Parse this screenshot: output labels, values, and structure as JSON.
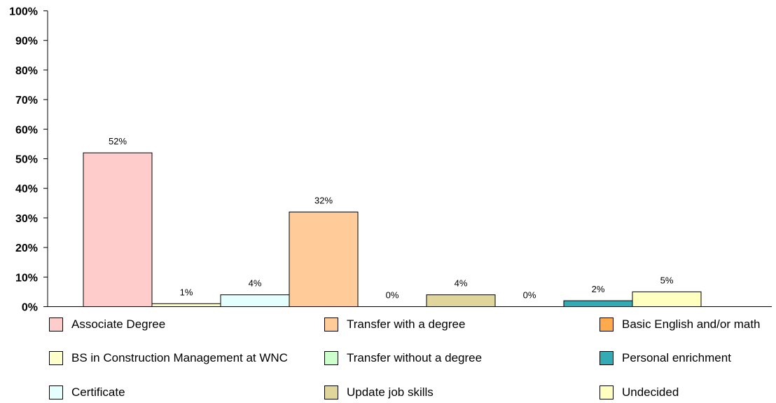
{
  "chart_data": {
    "type": "bar",
    "title": "",
    "xlabel": "",
    "ylabel": "",
    "ylim": [
      0,
      100
    ],
    "yticks": [
      "0%",
      "10%",
      "20%",
      "30%",
      "40%",
      "50%",
      "60%",
      "70%",
      "80%",
      "90%",
      "100%"
    ],
    "grid": false,
    "legend_position": "bottom",
    "series": [
      {
        "name": "Associate Degree",
        "value": 52,
        "label": "52%",
        "color": "#FFCCCC"
      },
      {
        "name": "BS in Construction Management at WNC",
        "value": 1,
        "label": "1%",
        "color": "#FFFFCC"
      },
      {
        "name": "Certificate",
        "value": 4,
        "label": "4%",
        "color": "#E5FFFF"
      },
      {
        "name": "Transfer with a degree",
        "value": 32,
        "label": "32%",
        "color": "#FFCC99"
      },
      {
        "name": "Transfer without a degree",
        "value": 0,
        "label": "0%",
        "color": "#CCFFCC"
      },
      {
        "name": "Update job skills",
        "value": 4,
        "label": "4%",
        "color": "#E0D59A"
      },
      {
        "name": "Basic English and/or math",
        "value": 0,
        "label": "0%",
        "color": "#FFAA4C"
      },
      {
        "name": "Personal enrichment",
        "value": 2,
        "label": "2%",
        "color": "#33AAB4"
      },
      {
        "name": "Undecided",
        "value": 5,
        "label": "5%",
        "color": "#FFFFC0"
      }
    ]
  }
}
